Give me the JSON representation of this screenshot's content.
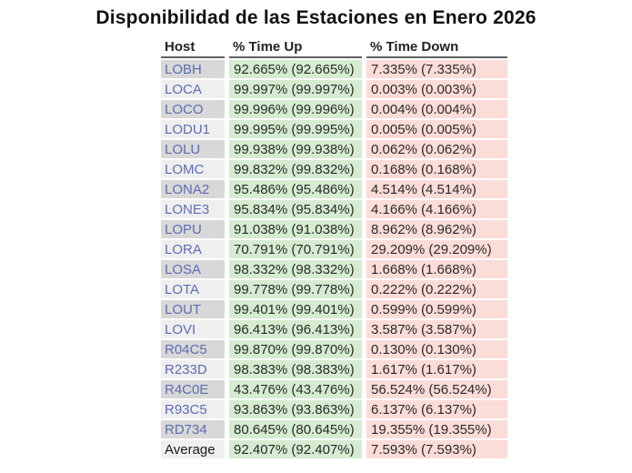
{
  "page": {
    "title": "Disponibilidad de las Estaciones en Enero 2026"
  },
  "table": {
    "columns": [
      "Host",
      "% Time Up",
      "% Time Down"
    ],
    "rows": [
      {
        "host": "LOBH",
        "up": "92.665% (92.665%)",
        "down": "7.335% (7.335%)"
      },
      {
        "host": "LOCA",
        "up": "99.997% (99.997%)",
        "down": "0.003% (0.003%)"
      },
      {
        "host": "LOCO",
        "up": "99.996% (99.996%)",
        "down": "0.004% (0.004%)"
      },
      {
        "host": "LODU1",
        "up": "99.995% (99.995%)",
        "down": "0.005% (0.005%)"
      },
      {
        "host": "LOLU",
        "up": "99.938% (99.938%)",
        "down": "0.062% (0.062%)"
      },
      {
        "host": "LOMC",
        "up": "99.832% (99.832%)",
        "down": "0.168% (0.168%)"
      },
      {
        "host": "LONA2",
        "up": "95.486% (95.486%)",
        "down": "4.514% (4.514%)"
      },
      {
        "host": "LONE3",
        "up": "95.834% (95.834%)",
        "down": "4.166% (4.166%)"
      },
      {
        "host": "LOPU",
        "up": "91.038% (91.038%)",
        "down": "8.962% (8.962%)"
      },
      {
        "host": "LORA",
        "up": "70.791% (70.791%)",
        "down": "29.209% (29.209%)"
      },
      {
        "host": "LOSA",
        "up": "98.332% (98.332%)",
        "down": "1.668% (1.668%)"
      },
      {
        "host": "LOTA",
        "up": "99.778% (99.778%)",
        "down": "0.222% (0.222%)"
      },
      {
        "host": "LOUT",
        "up": "99.401% (99.401%)",
        "down": "0.599% (0.599%)"
      },
      {
        "host": "LOVI",
        "up": "96.413% (96.413%)",
        "down": "3.587% (3.587%)"
      },
      {
        "host": "R04C5",
        "up": "99.870% (99.870%)",
        "down": "0.130% (0.130%)"
      },
      {
        "host": "R233D",
        "up": "98.383% (98.383%)",
        "down": "1.617% (1.617%)"
      },
      {
        "host": "R4C0E",
        "up": "43.476% (43.476%)",
        "down": "56.524% (56.524%)"
      },
      {
        "host": "R93C5",
        "up": "93.863% (93.863%)",
        "down": "6.137% (6.137%)"
      },
      {
        "host": "RD734",
        "up": "80.645% (80.645%)",
        "down": "19.355% (19.355%)"
      },
      {
        "host": "Average",
        "up": "92.407% (92.407%)",
        "down": "7.593% (7.593%)",
        "is_average": true
      }
    ]
  },
  "colors": {
    "up_bg": "#d5ecd0",
    "down_bg": "#fbdcd7",
    "host_bg_odd": "#d8d8d8",
    "host_bg_even": "#efefef",
    "host_link": "#5c6db3"
  }
}
